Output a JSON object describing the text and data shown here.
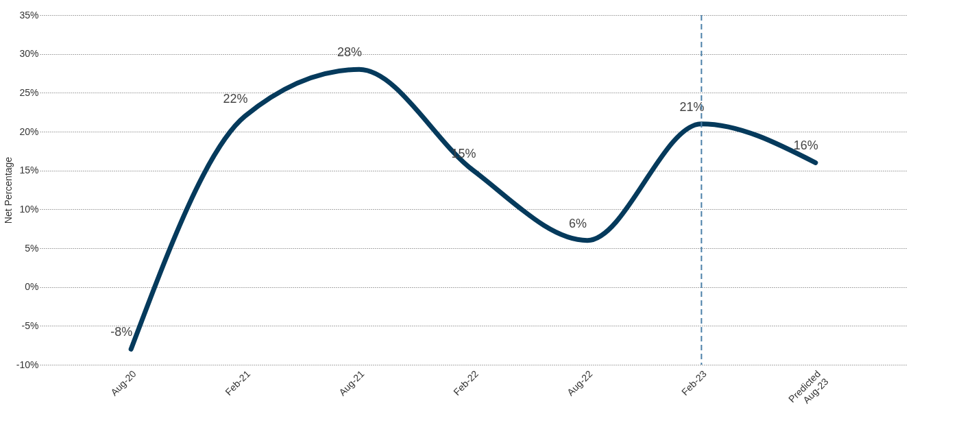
{
  "chart_data": {
    "type": "line",
    "ylabel": "Net Percentage",
    "categories": [
      "Aug-20",
      "Feb-21",
      "Aug-21",
      "Feb-22",
      "Aug-22",
      "Feb-23",
      "Predicted\nAug-23"
    ],
    "series": [
      {
        "color": "#053a5c",
        "values": [
          -8,
          22,
          28,
          15,
          6,
          21,
          16
        ],
        "value_labels": [
          "-8%",
          "22%",
          "28%",
          "15%",
          "6%",
          "21%",
          "16%"
        ]
      }
    ],
    "ylim": [
      -10,
      35
    ],
    "yticks": [
      {
        "value": -10,
        "label": "-10%"
      },
      {
        "value": -5,
        "label": "-5%"
      },
      {
        "value": 0,
        "label": "0%"
      },
      {
        "value": 5,
        "label": "5%"
      },
      {
        "value": 10,
        "label": "10%"
      },
      {
        "value": 15,
        "label": "15%"
      },
      {
        "value": 20,
        "label": "20%"
      },
      {
        "value": 25,
        "label": "25%"
      },
      {
        "value": 30,
        "label": "30%"
      },
      {
        "value": 35,
        "label": "35%"
      }
    ],
    "grid": "y",
    "marker": "none",
    "line_style": "solid",
    "ref_lines": [
      {
        "axis": "x",
        "value": "Feb-23",
        "color": "#4a7fa8",
        "line_style": "dashed"
      }
    ]
  }
}
